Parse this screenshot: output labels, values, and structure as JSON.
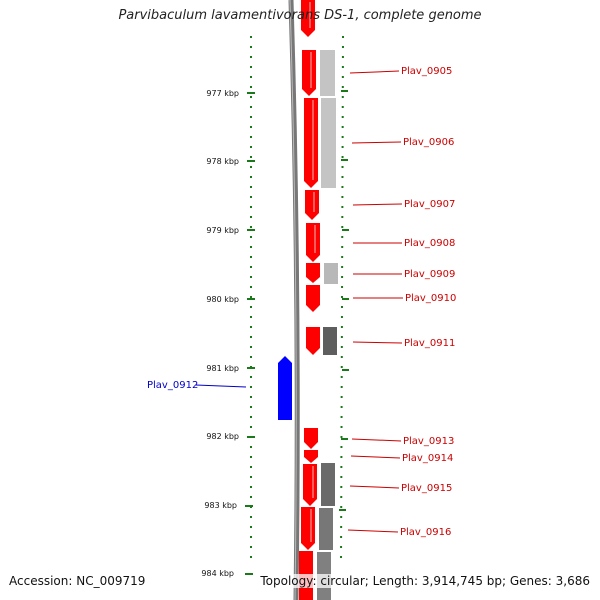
{
  "title": "Parvibaculum lavamentivorans DS-1, complete genome",
  "accession": "Accession: NC_009719",
  "topology": "Topology: circular; Length: 3,914,745 bp; Genes: 3,686",
  "axis_labels": [
    "977 kbp",
    "978 kbp",
    "979 kbp",
    "980 kbp",
    "981 kbp",
    "982 kbp",
    "983 kbp",
    "984 kbp"
  ],
  "colors": {
    "forward_gene": "#ff0000",
    "reverse_gene": "#0000ff",
    "ruler": "#1a7a1a",
    "backbone": "#777777",
    "similarity_light": "#c0c0c0",
    "similarity_dark": "#606060",
    "forward_label": "#cc0000",
    "reverse_label": "#0000cc"
  },
  "genes": {
    "forward": [
      "Plav_0905",
      "Plav_0906",
      "Plav_0907",
      "Plav_0908",
      "Plav_0909",
      "Plav_0910",
      "Plav_0911",
      "Plav_0913",
      "Plav_0914",
      "Plav_0915",
      "Plav_0916"
    ],
    "reverse": [
      "Plav_0912"
    ]
  }
}
